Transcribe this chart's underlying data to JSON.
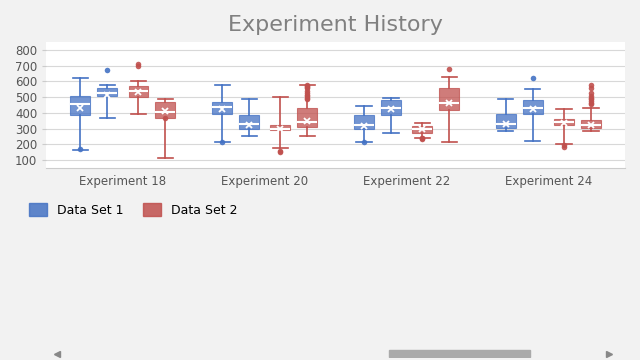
{
  "title": "Experiment History",
  "title_color": "#808080",
  "title_fontsize": 16,
  "background_color": "#F2F2F2",
  "plot_bg_color": "#FFFFFF",
  "grid_color": "#D8D8D8",
  "ylim": [
    50,
    850
  ],
  "yticks": [
    100,
    200,
    300,
    400,
    500,
    600,
    700,
    800
  ],
  "experiments": [
    "Experiment 18",
    "Experiment 20",
    "Experiment 22",
    "Experiment 24"
  ],
  "set1_color": "#4472C4",
  "set2_color": "#C0504D",
  "legend_labels": [
    "Data Set 1",
    "Data Set 2"
  ],
  "groups": [
    {
      "name": "Experiment 18",
      "boxes": [
        {
          "color": "set1",
          "whislo": 165,
          "q1": 385,
          "med": 455,
          "mean": 430,
          "q3": 505,
          "whishi": 620,
          "fliers": [
            170
          ]
        },
        {
          "color": "set1",
          "whislo": 365,
          "q1": 505,
          "med": 525,
          "mean": 515,
          "q3": 555,
          "whishi": 580,
          "fliers": [
            670
          ]
        },
        {
          "color": "set2",
          "whislo": 390,
          "q1": 500,
          "med": 540,
          "mean": 535,
          "q3": 570,
          "whishi": 600,
          "fliers": [
            700,
            710
          ]
        },
        {
          "color": "set2",
          "whislo": 110,
          "q1": 365,
          "med": 405,
          "mean": 410,
          "q3": 470,
          "whishi": 490,
          "fliers": [
            365
          ]
        }
      ]
    },
    {
      "name": "Experiment 20",
      "boxes": [
        {
          "color": "set1",
          "whislo": 215,
          "q1": 390,
          "med": 435,
          "mean": 425,
          "q3": 470,
          "whishi": 575,
          "fliers": [
            215
          ]
        },
        {
          "color": "set1",
          "whislo": 255,
          "q1": 295,
          "med": 330,
          "mean": 325,
          "q3": 385,
          "whishi": 490,
          "fliers": []
        },
        {
          "color": "set2",
          "whislo": 175,
          "q1": 290,
          "med": 300,
          "mean": 300,
          "q3": 320,
          "whishi": 500,
          "fliers": [
            160,
            150
          ]
        },
        {
          "color": "set2",
          "whislo": 255,
          "q1": 310,
          "med": 340,
          "mean": 345,
          "q3": 430,
          "whishi": 580,
          "fliers": [
            490,
            495,
            505,
            515,
            525,
            540,
            555,
            565,
            570,
            580
          ]
        }
      ]
    },
    {
      "name": "Experiment 22",
      "boxes": [
        {
          "color": "set1",
          "whislo": 215,
          "q1": 295,
          "med": 320,
          "mean": 315,
          "q3": 385,
          "whishi": 445,
          "fliers": [
            215
          ]
        },
        {
          "color": "set1",
          "whislo": 270,
          "q1": 385,
          "med": 430,
          "mean": 425,
          "q3": 480,
          "whishi": 495,
          "fliers": []
        },
        {
          "color": "set2",
          "whislo": 240,
          "q1": 270,
          "med": 295,
          "mean": 295,
          "q3": 315,
          "whishi": 335,
          "fliers": [
            240,
            235,
            240
          ]
        },
        {
          "color": "set2",
          "whislo": 215,
          "q1": 420,
          "med": 465,
          "mean": 460,
          "q3": 560,
          "whishi": 630,
          "fliers": [
            680
          ]
        }
      ]
    },
    {
      "name": "Experiment 24",
      "boxes": [
        {
          "color": "set1",
          "whislo": 285,
          "q1": 305,
          "med": 330,
          "mean": 330,
          "q3": 390,
          "whishi": 490,
          "fliers": []
        },
        {
          "color": "set1",
          "whislo": 220,
          "q1": 390,
          "med": 430,
          "mean": 425,
          "q3": 480,
          "whishi": 550,
          "fliers": [
            620
          ]
        },
        {
          "color": "set2",
          "whislo": 200,
          "q1": 320,
          "med": 340,
          "mean": 335,
          "q3": 360,
          "whishi": 425,
          "fliers": [
            185,
            195
          ]
        },
        {
          "color": "set2",
          "whislo": 285,
          "q1": 305,
          "med": 325,
          "mean": 325,
          "q3": 355,
          "whishi": 430,
          "fliers": [
            455,
            465,
            475,
            485,
            495,
            510,
            525,
            555,
            580
          ]
        }
      ]
    }
  ]
}
